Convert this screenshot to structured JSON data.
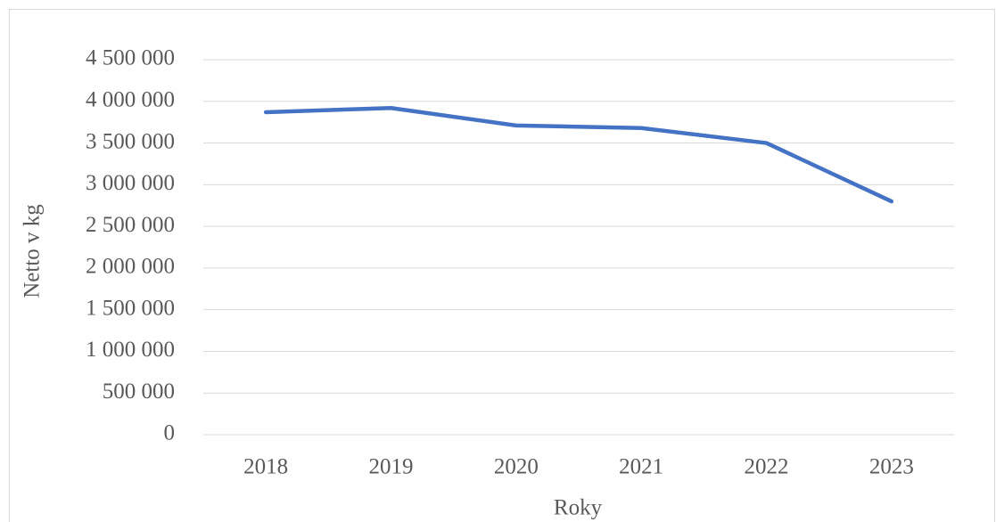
{
  "chart_data": {
    "type": "line",
    "x_label": "Roky",
    "y_label": "Netto v kg",
    "categories": [
      "2018",
      "2019",
      "2020",
      "2021",
      "2022",
      "2023"
    ],
    "series": [
      {
        "name": "Netto v kg",
        "color": "#4472c4",
        "values": [
          3870000,
          3920000,
          3710000,
          3680000,
          3500000,
          2800000
        ]
      }
    ],
    "ylim": [
      0,
      4500000
    ],
    "yticks": [
      0,
      {
        "value": 500000,
        "label": "500 000"
      },
      {
        "value": 1000000,
        "label": "1 000 000"
      },
      {
        "value": 1500000,
        "label": "1 500 000"
      },
      {
        "value": 2000000,
        "label": "2 000 000"
      },
      {
        "value": 2500000,
        "label": "2 500 000"
      },
      {
        "value": 3000000,
        "label": "3 000 000"
      },
      {
        "value": 3500000,
        "label": "3 500 000"
      },
      {
        "value": 4000000,
        "label": "4 000 000"
      },
      {
        "value": 4500000,
        "label": "4 500 000"
      }
    ],
    "grid": true
  }
}
